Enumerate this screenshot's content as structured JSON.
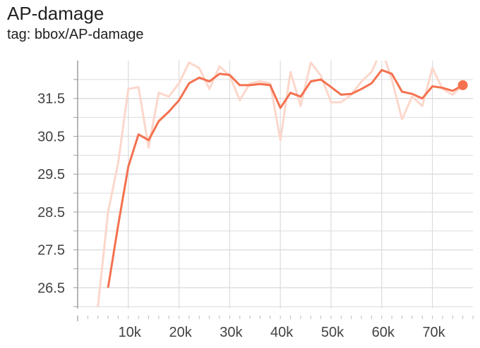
{
  "chart_data": {
    "type": "line",
    "title": "AP-damage",
    "subtitle": "tag: bbox/AP-damage",
    "xlim": [
      0,
      78000
    ],
    "ylim": [
      25.95,
      32.5
    ],
    "x_ticks": [
      10000,
      20000,
      30000,
      40000,
      50000,
      60000,
      70000
    ],
    "x_tick_labels": [
      "10k",
      "20k",
      "30k",
      "40k",
      "50k",
      "60k",
      "70k"
    ],
    "y_ticks": [
      26.5,
      27.5,
      28.5,
      29.5,
      30.5,
      31.5
    ],
    "y_tick_labels": [
      "26.5",
      "27.5",
      "28.5",
      "29.5",
      "30.5",
      "31.5"
    ],
    "colors": {
      "smoothed": "#f4714f",
      "raw": "#fcd7cb",
      "grid": "#dcdcdc",
      "axis": "#9e9e9e"
    },
    "series": [
      {
        "name": "raw",
        "x": [
          4000,
          6000,
          8000,
          10000,
          12000,
          14000,
          16000,
          18000,
          20000,
          22000,
          24000,
          26000,
          28000,
          30000,
          32000,
          34000,
          36000,
          38000,
          40000,
          42000,
          44000,
          46000,
          48000,
          50000,
          52000,
          54000,
          56000,
          58000,
          60000,
          62000,
          64000,
          66000,
          68000,
          70000,
          72000,
          74000,
          76000
        ],
        "y": [
          26.0,
          28.5,
          29.8,
          31.75,
          31.8,
          30.2,
          31.65,
          31.55,
          31.9,
          32.45,
          32.3,
          31.75,
          32.35,
          32.1,
          31.45,
          31.9,
          31.95,
          31.9,
          30.4,
          32.2,
          31.3,
          32.45,
          32.1,
          31.4,
          31.4,
          31.6,
          31.95,
          32.2,
          32.8,
          32.0,
          30.95,
          31.55,
          31.3,
          32.3,
          31.75,
          31.6,
          31.85
        ]
      },
      {
        "name": "smoothed",
        "x": [
          6000,
          8000,
          10000,
          12000,
          14000,
          16000,
          18000,
          20000,
          22000,
          24000,
          26000,
          28000,
          30000,
          32000,
          34000,
          36000,
          38000,
          40000,
          42000,
          44000,
          46000,
          48000,
          50000,
          52000,
          54000,
          56000,
          58000,
          60000,
          62000,
          64000,
          66000,
          68000,
          70000,
          72000,
          74000,
          76000
        ],
        "y": [
          26.5,
          28.15,
          29.7,
          30.55,
          30.4,
          30.9,
          31.15,
          31.45,
          31.9,
          32.05,
          31.95,
          32.15,
          32.12,
          31.85,
          31.85,
          31.88,
          31.85,
          31.25,
          31.65,
          31.55,
          31.95,
          32.0,
          31.8,
          31.6,
          31.62,
          31.75,
          31.9,
          32.25,
          32.15,
          31.68,
          31.62,
          31.5,
          31.82,
          31.78,
          31.7,
          31.85
        ]
      }
    ],
    "last_point": {
      "x": 76000,
      "y": 31.85
    }
  }
}
